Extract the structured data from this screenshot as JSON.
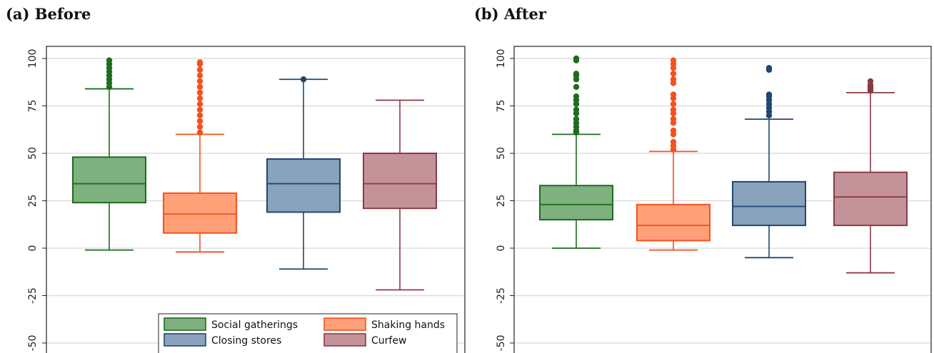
{
  "chart_data": [
    {
      "type": "box",
      "title": "(a) Before",
      "xlabel": "",
      "ylabel": "",
      "ylim": [
        -55,
        103
      ],
      "yticks": [
        100,
        75,
        50,
        25,
        0,
        -25,
        -50
      ],
      "ytick_labels": [
        "100",
        "75",
        "50",
        "25",
        "0",
        "-25",
        "-50"
      ],
      "grid": true,
      "legend_position": "bottom-right",
      "series": [
        {
          "name": "Social gatherings",
          "color": "#7fb07f",
          "stroke": "#1f6b1f",
          "whisker_low": -1,
          "q1": 24,
          "median": 34,
          "q3": 48,
          "whisker_high": 84,
          "outliers": [
            85,
            87,
            89,
            91,
            93,
            95,
            97,
            99
          ]
        },
        {
          "name": "Shaking hands",
          "color": "#ffa078",
          "stroke": "#f4511e",
          "whisker_low": -2,
          "q1": 8,
          "median": 18,
          "q3": 29,
          "whisker_high": 60,
          "outliers": [
            61,
            64,
            67,
            70,
            73,
            76,
            79,
            82,
            85,
            88,
            91,
            94,
            97,
            98
          ]
        },
        {
          "name": "Closing stores",
          "color": "#8aa3bd",
          "stroke": "#1f4770",
          "whisker_low": -11,
          "q1": 19,
          "median": 34,
          "q3": 47,
          "whisker_high": 89,
          "outliers": [
            89
          ]
        },
        {
          "name": "Curfew",
          "color": "#c49399",
          "stroke": "#8b3a44",
          "whisker_low": -22,
          "q1": 21,
          "median": 34,
          "q3": 50,
          "whisker_high": 78,
          "outliers": []
        }
      ]
    },
    {
      "type": "box",
      "title": "(b) After",
      "xlabel": "",
      "ylabel": "",
      "ylim": [
        -55,
        103
      ],
      "yticks": [
        100,
        75,
        50,
        25,
        0,
        -25,
        -50
      ],
      "ytick_labels": [
        "100",
        "75",
        "50",
        "25",
        "0",
        "-25",
        "-50"
      ],
      "grid": true,
      "series": [
        {
          "name": "Social gatherings",
          "color": "#7fb07f",
          "stroke": "#1f6b1f",
          "whisker_low": 0,
          "q1": 15,
          "median": 23,
          "q3": 33,
          "whisker_high": 60,
          "outliers": [
            61,
            62,
            64,
            66,
            68,
            71,
            73,
            76,
            78,
            80,
            85,
            89,
            91,
            92,
            99,
            100
          ]
        },
        {
          "name": "Shaking hands",
          "color": "#ffa078",
          "stroke": "#f4511e",
          "whisker_low": -1,
          "q1": 4,
          "median": 12,
          "q3": 23,
          "whisker_high": 51,
          "outliers": [
            52,
            54,
            56,
            60,
            62,
            66,
            68,
            71,
            73,
            76,
            79,
            81,
            87,
            89,
            92,
            95,
            97,
            99
          ]
        },
        {
          "name": "Closing stores",
          "color": "#8aa3bd",
          "stroke": "#1f4770",
          "whisker_low": -5,
          "q1": 12,
          "median": 22,
          "q3": 35,
          "whisker_high": 68,
          "outliers": [
            70,
            72,
            74,
            76,
            78,
            80,
            81,
            94,
            95
          ]
        },
        {
          "name": "Curfew",
          "color": "#c49399",
          "stroke": "#8b3a44",
          "whisker_low": -13,
          "q1": 12,
          "median": 27,
          "q3": 40,
          "whisker_high": 82,
          "outliers": [
            83,
            84,
            85,
            86,
            88
          ]
        }
      ]
    }
  ]
}
